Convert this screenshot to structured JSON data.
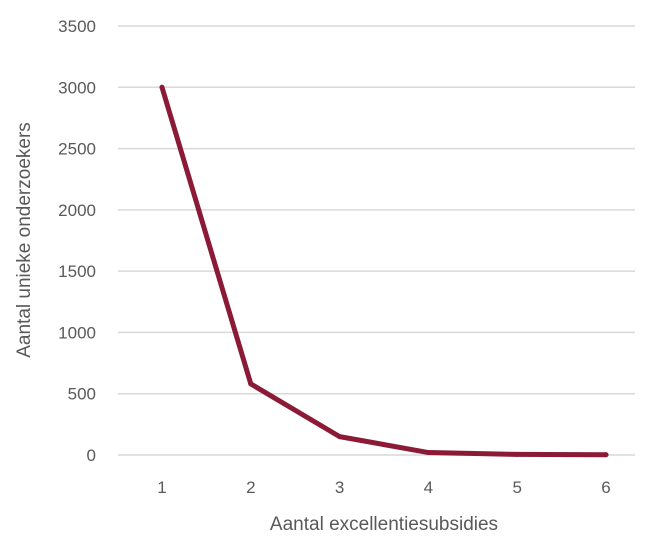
{
  "chart_data": {
    "type": "line",
    "title": "",
    "xlabel": "Aantal excellentiesubsidies",
    "ylabel": "Aantal unieke onderzoekers",
    "categories": [
      "1",
      "2",
      "3",
      "4",
      "5",
      "6"
    ],
    "series": [
      {
        "values": [
          3000,
          580,
          150,
          20,
          5,
          2
        ],
        "color": "#8b1a36"
      }
    ],
    "ylim": [
      0,
      3500
    ],
    "yticks": [
      0,
      500,
      1000,
      1500,
      2000,
      2500,
      3000,
      3500
    ],
    "grid": true,
    "gridColor": "#d9d9d9",
    "legend": "none"
  }
}
